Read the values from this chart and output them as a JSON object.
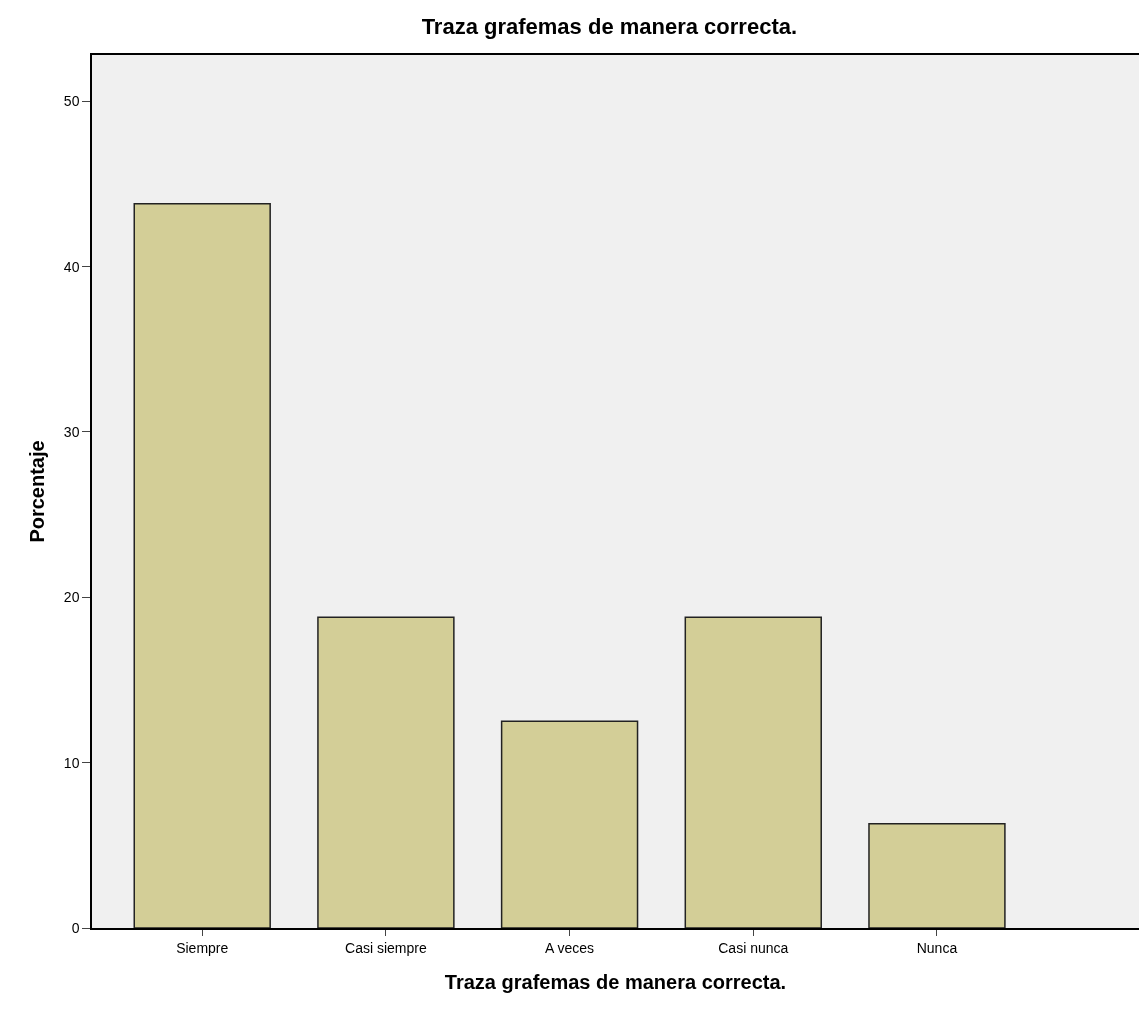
{
  "chart_data": {
    "type": "bar",
    "title": "Traza grafemas de manera correcta.",
    "xlabel": "Traza grafemas de manera correcta.",
    "ylabel": "Porcentaje",
    "categories": [
      "Siempre",
      "Casi siempre",
      "A veces",
      "Casi nunca",
      "Nunca"
    ],
    "values": [
      43.8,
      18.8,
      12.5,
      18.8,
      6.3
    ],
    "color": "#d3ce97",
    "ylim": [
      0,
      52.8
    ],
    "yticks": [
      0,
      10,
      20,
      30,
      40,
      50
    ],
    "grid": false
  }
}
